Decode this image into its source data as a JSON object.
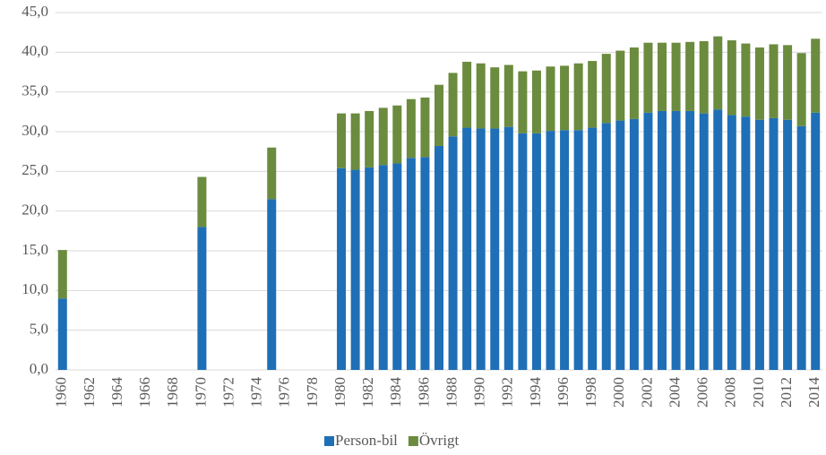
{
  "chart_data": {
    "type": "stacked_bar",
    "categories": [
      "1960",
      null,
      "1962",
      null,
      "1964",
      null,
      "1966",
      null,
      "1968",
      null,
      "1970",
      null,
      "1972",
      null,
      "1974",
      null,
      "1976",
      null,
      "1978",
      null,
      "1980",
      null,
      "1982",
      null,
      "1984",
      null,
      "1986",
      null,
      "1988",
      null,
      "1990",
      null,
      "1992",
      null,
      "1994",
      null,
      "1996",
      null,
      "1998",
      null,
      "2000",
      null,
      "2002",
      null,
      "2004",
      null,
      "2006",
      null,
      "2008",
      null,
      "2010",
      null,
      "2012",
      null,
      "2014"
    ],
    "series": [
      {
        "name": "Person-bil",
        "color": "#1f6fb6",
        "values": [
          9.0,
          null,
          null,
          null,
          null,
          null,
          null,
          null,
          null,
          null,
          18.0,
          null,
          null,
          null,
          null,
          21.5,
          null,
          null,
          null,
          null,
          25.4,
          25.2,
          25.5,
          25.8,
          26.0,
          26.7,
          26.8,
          28.2,
          29.4,
          30.5,
          30.4,
          30.4,
          30.6,
          29.8,
          29.8,
          30.1,
          30.2,
          30.2,
          30.5,
          31.1,
          31.4,
          31.6,
          32.4,
          32.6,
          32.6,
          32.6,
          32.3,
          32.8,
          32.1,
          31.9,
          31.5,
          31.7,
          31.5,
          30.7,
          32.4
        ]
      },
      {
        "name": "Övrigt",
        "color": "#6b8b3e",
        "values": [
          6.1,
          null,
          null,
          null,
          null,
          null,
          null,
          null,
          null,
          null,
          6.3,
          null,
          null,
          null,
          null,
          6.5,
          null,
          null,
          null,
          null,
          6.9,
          7.1,
          7.1,
          7.2,
          7.3,
          7.4,
          7.5,
          7.7,
          8.0,
          8.3,
          8.2,
          7.7,
          7.8,
          7.8,
          7.9,
          8.1,
          8.1,
          8.4,
          8.4,
          8.7,
          8.8,
          9.0,
          8.8,
          8.6,
          8.6,
          8.7,
          9.1,
          9.2,
          9.4,
          9.2,
          9.1,
          9.3,
          9.4,
          9.2,
          9.3
        ]
      }
    ],
    "ylim": [
      0,
      45
    ],
    "yticks": [
      {
        "value": 0,
        "label": "0,0"
      },
      {
        "value": 5,
        "label": "5,0"
      },
      {
        "value": 10,
        "label": "10,0"
      },
      {
        "value": 15,
        "label": "15,0"
      },
      {
        "value": 20,
        "label": "20,0"
      },
      {
        "value": 25,
        "label": "25,0"
      },
      {
        "value": 30,
        "label": "30,0"
      },
      {
        "value": 35,
        "label": "35,0"
      },
      {
        "value": 40,
        "label": "40,0"
      },
      {
        "value": 45,
        "label": "45,0"
      }
    ],
    "grid": true,
    "legend": "bottom"
  }
}
